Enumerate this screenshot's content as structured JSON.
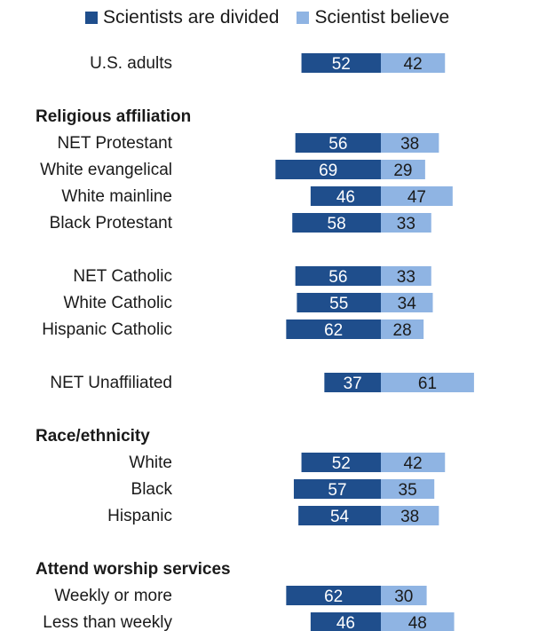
{
  "colors": {
    "divided": "#1f4e8c",
    "believe": "#8fb4e3",
    "label_on_dark": "#ffffff",
    "label_on_light": "#1a1a1a"
  },
  "legend": {
    "divided": "Scientists are divided",
    "believe": "Scientist believe"
  },
  "chart_data": {
    "type": "bar",
    "orientation": "horizontal-diverging",
    "xlim": [
      -75,
      65
    ],
    "series": [
      {
        "name": "Scientists are divided",
        "key": "divided"
      },
      {
        "name": "Scientist believe",
        "key": "believe"
      }
    ],
    "sections": [
      {
        "heading": "",
        "rows": [
          {
            "label": "U.S. adults",
            "divided": 52,
            "believe": 42
          }
        ]
      },
      {
        "heading": "Religious affiliation",
        "rows": [
          {
            "label": "NET Protestant",
            "divided": 56,
            "believe": 38
          },
          {
            "label": "White evangelical",
            "divided": 69,
            "believe": 29
          },
          {
            "label": "White mainline",
            "divided": 46,
            "believe": 47
          },
          {
            "label": "Black Protestant",
            "divided": 58,
            "believe": 33
          }
        ]
      },
      {
        "heading": "",
        "rows": [
          {
            "label": "NET Catholic",
            "divided": 56,
            "believe": 33
          },
          {
            "label": "White Catholic",
            "divided": 55,
            "believe": 34
          },
          {
            "label": "Hispanic Catholic",
            "divided": 62,
            "believe": 28
          }
        ]
      },
      {
        "heading": "",
        "rows": [
          {
            "label": "NET Unaffiliated",
            "divided": 37,
            "believe": 61
          }
        ]
      },
      {
        "heading": "Race/ethnicity",
        "rows": [
          {
            "label": "White",
            "divided": 52,
            "believe": 42
          },
          {
            "label": "Black",
            "divided": 57,
            "believe": 35
          },
          {
            "label": "Hispanic",
            "divided": 54,
            "believe": 38
          }
        ]
      },
      {
        "heading": "Attend worship services",
        "rows": [
          {
            "label": "Weekly or more",
            "divided": 62,
            "believe": 30
          },
          {
            "label": "Less than weekly",
            "divided": 46,
            "believe": 48
          }
        ]
      }
    ]
  }
}
